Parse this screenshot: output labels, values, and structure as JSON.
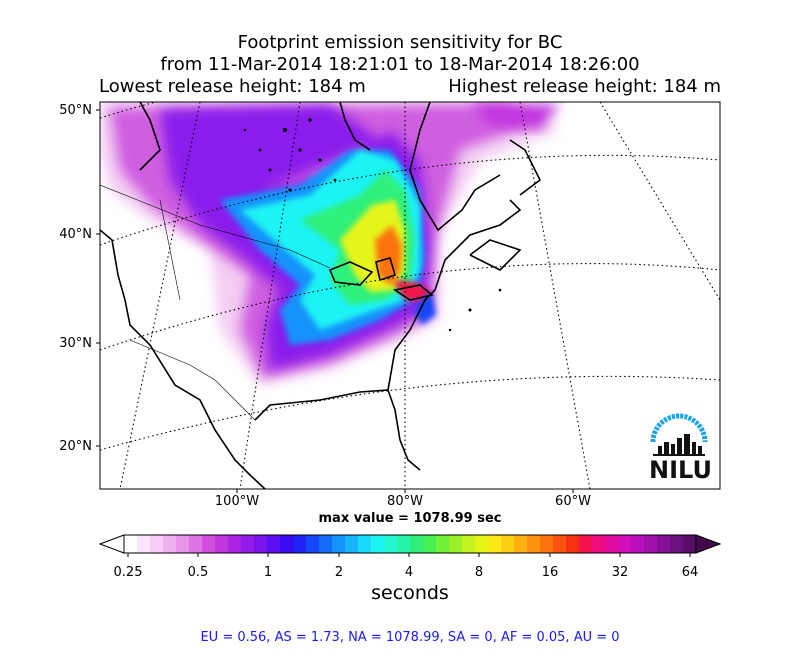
{
  "title": {
    "line1": "Footprint emission sensitivity for BC",
    "line2": "from 11-Mar-2014 18:21:01 to 18-Mar-2014 18:26:00",
    "lowest": "Lowest release height: 184 m",
    "highest": "Highest release height: 184 m"
  },
  "map": {
    "lat_labels": [
      "50°N",
      "40°N",
      "30°N",
      "20°N"
    ],
    "lon_labels": [
      "100°W",
      "80°W",
      "60°W"
    ],
    "max_value": "max value = 1078.99 sec",
    "logo_text": "NILU"
  },
  "colorbar": {
    "tick_labels": [
      "0.25",
      "0.5",
      "1",
      "2",
      "4",
      "8",
      "16",
      "32",
      "64"
    ],
    "units": "seconds",
    "colors": [
      "#ffffff",
      "#fbe6fb",
      "#f6cdf6",
      "#efb2f0",
      "#e795ea",
      "#dd74e3",
      "#d14edd",
      "#c236e0",
      "#ad22e6",
      "#941cea",
      "#7a14ef",
      "#5c0ff2",
      "#3b0cf2",
      "#1f22f5",
      "#1647f8",
      "#136df9",
      "#1692fb",
      "#17b6fb",
      "#1bd9fb",
      "#1ef3f4",
      "#21f7cf",
      "#25f4a4",
      "#2df07a",
      "#46ef52",
      "#71f03a",
      "#9bf02c",
      "#c4f221",
      "#e6f51a",
      "#fbe916",
      "#fdcd13",
      "#fdb011",
      "#fc9310",
      "#fb730f",
      "#f9530f",
      "#f7300f",
      "#f4124a",
      "#ee0d7c",
      "#e20ba2",
      "#d20dba",
      "#bb0fbf",
      "#a011b0",
      "#851299",
      "#6c1180",
      "#550f66"
    ]
  },
  "regions": "EU = 0.56,  AS = 1.73,  NA = 1078.99,  SA = 0,  AF = 0.05,  AU = 0"
}
